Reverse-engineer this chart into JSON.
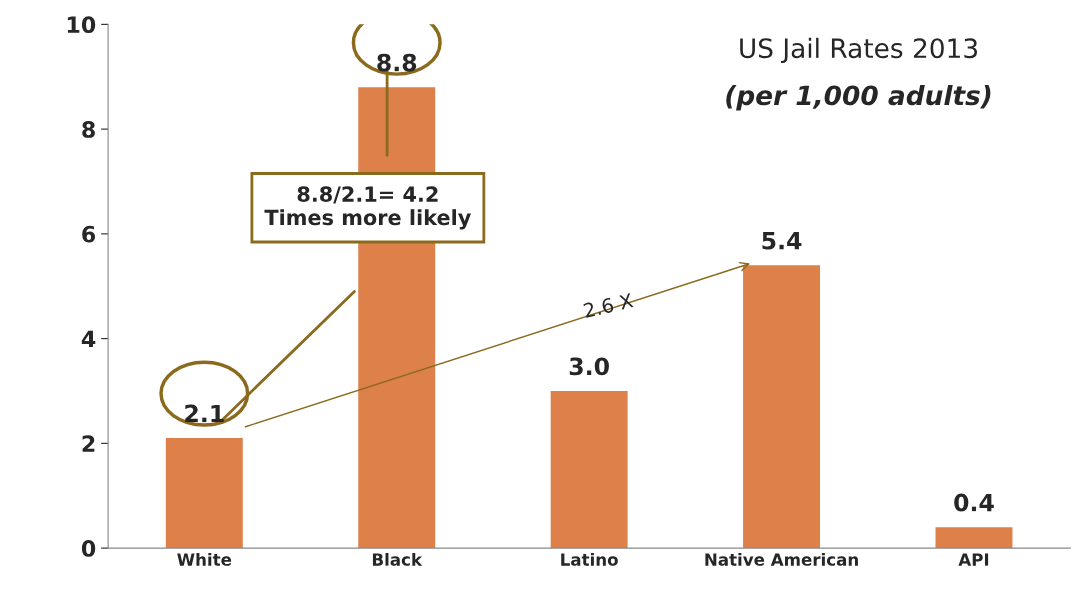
{
  "chart_data": {
    "type": "bar",
    "title": "US Jail Rates 2013",
    "subtitle": "(per 1,000 adults)",
    "categories": [
      "White",
      "Black",
      "Latino",
      "Native American",
      "API"
    ],
    "values": [
      2.1,
      8.8,
      3.0,
      5.4,
      0.4
    ],
    "value_labels": [
      "2.1",
      "8.8",
      "3.0",
      "5.4",
      "0.4"
    ],
    "color": "#dd804a",
    "ylim": [
      0,
      10
    ],
    "yticks": [
      0,
      2,
      4,
      6,
      8,
      10
    ],
    "grid": false,
    "legend": false,
    "annotations": [
      "8.8/2.1= 4.2\nTimes more likely",
      "2.6 X"
    ]
  }
}
